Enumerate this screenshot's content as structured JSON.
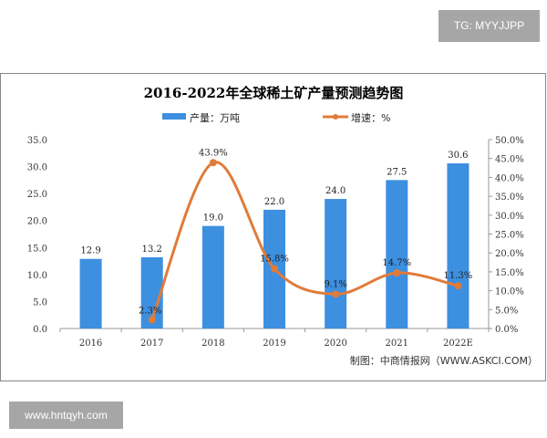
{
  "watermark_top": "TG: MYYJJPP",
  "watermark_bottom": "www.hntqyh.com",
  "source": "制图：中商情报网（WWW.ASKCI.COM）",
  "chart_data": {
    "type": "bar+line",
    "title": "2016-2022年全球稀土矿产量预测趋势图",
    "categories": [
      "2016",
      "2017",
      "2018",
      "2019",
      "2020",
      "2021",
      "2022E"
    ],
    "series": [
      {
        "name": "产量：万吨",
        "type": "bar",
        "axis": "left",
        "color": "#3d8fe0",
        "values": [
          12.9,
          13.2,
          19.0,
          22.0,
          24.0,
          27.5,
          30.6
        ],
        "labels": [
          "12.9",
          "13.2",
          "19.0",
          "22.0",
          "24.0",
          "27.5",
          "30.6"
        ]
      },
      {
        "name": "增速：%",
        "type": "line",
        "axis": "right",
        "color": "#e07b39",
        "values": [
          null,
          2.3,
          43.9,
          15.8,
          9.1,
          14.7,
          11.3
        ],
        "labels": [
          "",
          "2.3%",
          "43.9%",
          "15.8%",
          "9.1%",
          "14.7%",
          "11.3%"
        ]
      }
    ],
    "left_axis": {
      "ylim": [
        0,
        35
      ],
      "ticks": [
        "0.0",
        "5.0",
        "10.0",
        "15.0",
        "20.0",
        "25.0",
        "30.0",
        "35.0"
      ]
    },
    "right_axis": {
      "ylim": [
        0,
        50
      ],
      "ticks": [
        "0.0%",
        "5.0%",
        "10.0%",
        "15.0%",
        "20.0%",
        "25.0%",
        "30.0%",
        "35.0%",
        "40.0%",
        "45.0%",
        "50.0%"
      ]
    },
    "legend": "top-center"
  }
}
